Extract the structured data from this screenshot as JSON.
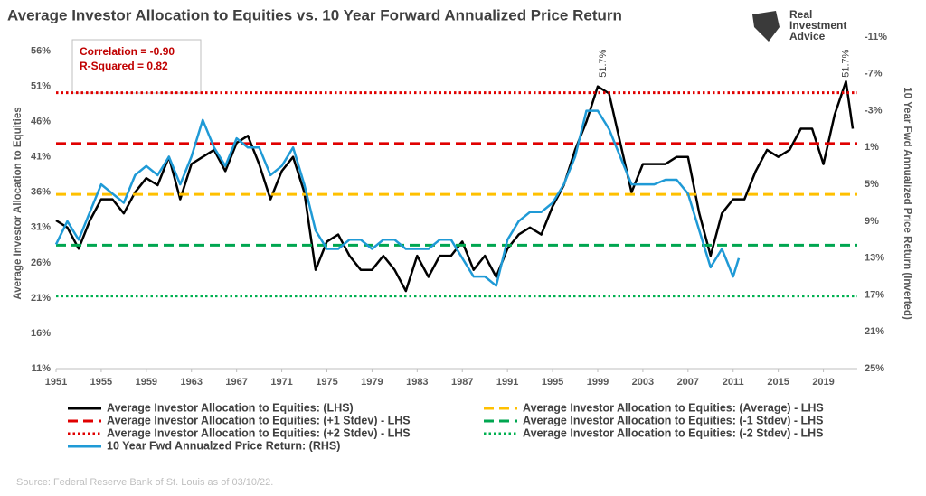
{
  "chart_data": {
    "type": "line",
    "title": "Average Investor Allocation to Equities vs. 10 Year Forward Annualized Price Return",
    "brand": [
      "Real",
      "Investment",
      "Advice"
    ],
    "stats": [
      "Correlation = -0.90",
      "R-Squared = 0.82"
    ],
    "ylabel": "Average Investor Allocation to Equities",
    "y2label": "10 Year Fwd Annualized Price Return (Inverted)",
    "source": "Source: Federal Reserve Bank of St. Louis as of 03/10/22.",
    "xlim": [
      1951,
      2022
    ],
    "xticks": [
      1951,
      1955,
      1959,
      1963,
      1967,
      1971,
      1975,
      1979,
      1983,
      1987,
      1991,
      1995,
      1999,
      2003,
      2007,
      2011,
      2015,
      2019
    ],
    "ylim": [
      11,
      58
    ],
    "yticks": [
      {
        "value": 11,
        "label": "11%"
      },
      {
        "value": 16,
        "label": "16%"
      },
      {
        "value": 21,
        "label": "21%"
      },
      {
        "value": 26,
        "label": "26%"
      },
      {
        "value": 31,
        "label": "31%"
      },
      {
        "value": 36,
        "label": "36%"
      },
      {
        "value": 41,
        "label": "41%"
      },
      {
        "value": 46,
        "label": "46%"
      },
      {
        "value": 51,
        "label": "51%"
      },
      {
        "value": 56,
        "label": "56%"
      }
    ],
    "y2lim": [
      25,
      -11
    ],
    "y2ticks": [
      {
        "value": -11,
        "label": "-11%"
      },
      {
        "value": -7,
        "label": "-7%"
      },
      {
        "value": -3,
        "label": "-3%"
      },
      {
        "value": 1,
        "label": "1%"
      },
      {
        "value": 5,
        "label": "5%"
      },
      {
        "value": 9,
        "label": "9%"
      },
      {
        "value": 13,
        "label": "13%"
      },
      {
        "value": 17,
        "label": "17%"
      },
      {
        "value": 21,
        "label": "21%"
      },
      {
        "value": 25,
        "label": "25%"
      }
    ],
    "series": [
      {
        "name": "Average Investor Allocation to Equities: (LHS)",
        "color": "#000000",
        "style": "solid",
        "x": [
          1951,
          1952,
          1953,
          1954,
          1955,
          1956,
          1957,
          1958,
          1959,
          1960,
          1961,
          1962,
          1963,
          1964,
          1965,
          1966,
          1967,
          1968,
          1969,
          1970,
          1971,
          1972,
          1973,
          1974,
          1975,
          1976,
          1977,
          1978,
          1979,
          1980,
          1981,
          1982,
          1983,
          1984,
          1985,
          1986,
          1987,
          1988,
          1989,
          1990,
          1991,
          1992,
          1993,
          1994,
          1995,
          1996,
          1997,
          1998,
          1999,
          2000,
          2001,
          2002,
          2003,
          2004,
          2005,
          2006,
          2007,
          2008,
          2009,
          2010,
          2011,
          2012,
          2013,
          2014,
          2015,
          2016,
          2017,
          2018,
          2019,
          2020,
          2021,
          2021.6
        ],
        "values": [
          32,
          31,
          28,
          32,
          35,
          35,
          33,
          36,
          38,
          37,
          41,
          35,
          40,
          41,
          42,
          39,
          43,
          44,
          40,
          35,
          39,
          41,
          36,
          25,
          29,
          30,
          27,
          25,
          25,
          27,
          25,
          22,
          27,
          24,
          27,
          27,
          29,
          25,
          27,
          24,
          28,
          30,
          31,
          30,
          34,
          37,
          42,
          46,
          51,
          50,
          43,
          36,
          40,
          40,
          40,
          41,
          41,
          33,
          27,
          33,
          35,
          35,
          39,
          42,
          41,
          42,
          45,
          45,
          40,
          47,
          51.7,
          45
        ]
      },
      {
        "name": "Average Investor Allocation to Equities: (Average) - LHS",
        "color": "#ffc000",
        "style": "dashed",
        "value": 35.7
      },
      {
        "name": "Average Investor Allocation to Equities: (+1 Stdev) - LHS",
        "color": "#e00000",
        "style": "dashed",
        "value": 42.9
      },
      {
        "name": "Average Investor Allocation to Equities: (-1 Stdev) - LHS",
        "color": "#00a650",
        "style": "dashed",
        "value": 28.5
      },
      {
        "name": "Average Investor Allocation to Equities: (+2 Stdev) - LHS",
        "color": "#e00000",
        "style": "dotted",
        "value": 50.1
      },
      {
        "name": "Average Investor Allocation to Equities: (-2 Stdev) - LHS",
        "color": "#00b050",
        "style": "dotted",
        "value": 21.3
      },
      {
        "name": "10 Year Fwd Annualzed Price Return: (RHS)",
        "color": "#1f9ad6",
        "style": "solid",
        "axis": "y2",
        "x": [
          1951,
          1952,
          1953,
          1954,
          1955,
          1956,
          1957,
          1958,
          1959,
          1960,
          1961,
          1962,
          1963,
          1964,
          1965,
          1966,
          1967,
          1968,
          1969,
          1970,
          1971,
          1972,
          1973,
          1974,
          1975,
          1976,
          1977,
          1978,
          1979,
          1980,
          1981,
          1982,
          1983,
          1984,
          1985,
          1986,
          1987,
          1988,
          1989,
          1990,
          1991,
          1992,
          1993,
          1994,
          1995,
          1996,
          1997,
          1998,
          1999,
          2000,
          2001,
          2002,
          2003,
          2004,
          2005,
          2006,
          2007,
          2008,
          2009,
          2010,
          2011,
          2011.5
        ],
        "values": [
          11.5,
          9,
          11,
          8,
          5,
          6,
          7,
          4,
          3,
          4,
          2,
          5,
          2,
          -2,
          1,
          3,
          0,
          1,
          1,
          4,
          3,
          1,
          5,
          10,
          12,
          12,
          11,
          11,
          12,
          11,
          11,
          12,
          12,
          12,
          11,
          11,
          13,
          15,
          15,
          16,
          11,
          9,
          8,
          8,
          7,
          5,
          2,
          -3,
          -3,
          -1,
          2,
          5,
          5,
          5,
          4.5,
          4.5,
          6,
          10,
          14,
          12,
          15,
          13
        ]
      }
    ],
    "annotations": [
      {
        "x": 1999.5,
        "y": 51.7,
        "label": "51.7%"
      },
      {
        "x": 2021,
        "y": 51.7,
        "label": "51.7%"
      }
    ]
  }
}
